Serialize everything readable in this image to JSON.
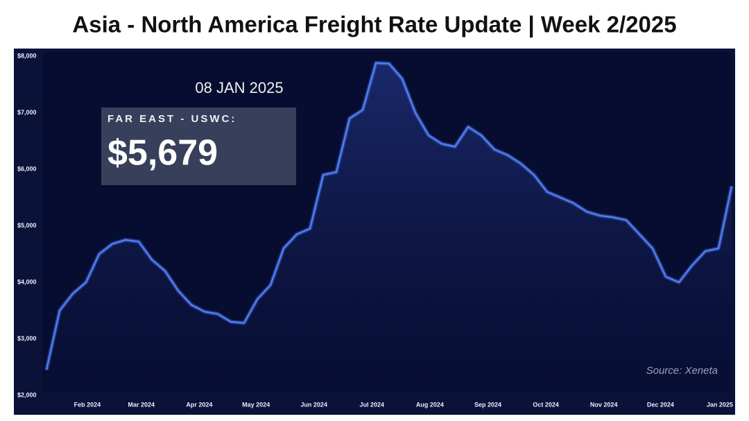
{
  "chart_data": {
    "type": "line",
    "title": "Asia - North America Freight Rate Update | Week 2/2025",
    "annotations": {
      "date": "08 JAN 2025",
      "route": "FAR EAST - USWC:",
      "rate": "$5,679",
      "source": "Source: Xeneta"
    },
    "x": [
      0,
      1,
      2,
      3,
      4,
      5,
      6,
      7,
      8,
      9,
      10,
      11,
      12,
      13,
      14,
      15,
      16,
      17,
      18,
      19,
      20,
      21,
      22,
      23,
      24,
      25,
      26,
      27,
      28,
      29,
      30,
      31,
      32,
      33,
      34,
      35,
      36,
      37,
      38,
      39,
      40,
      41,
      42,
      43,
      44,
      45,
      46,
      47,
      48,
      49,
      50,
      51,
      52
    ],
    "series": [
      {
        "name": "Far East - USWC",
        "color": "#4f7df5",
        "values": [
          2450,
          3500,
          3800,
          4000,
          4500,
          4680,
          4750,
          4720,
          4400,
          4200,
          3850,
          3600,
          3480,
          3440,
          3300,
          3280,
          3700,
          3950,
          4600,
          4850,
          4950,
          5900,
          5950,
          6900,
          7050,
          7880,
          7870,
          7600,
          7000,
          6600,
          6450,
          6400,
          6750,
          6600,
          6350,
          6250,
          6100,
          5900,
          5600,
          5500,
          5400,
          5250,
          5180,
          5150,
          5100,
          4850,
          4600,
          4100,
          4000,
          4300,
          4550,
          4600,
          5700
        ]
      }
    ],
    "xlim": [
      0,
      52
    ],
    "xticks": [
      {
        "value": 3.1,
        "label": "Feb 2024"
      },
      {
        "value": 7.2,
        "label": "Mar 2024"
      },
      {
        "value": 11.6,
        "label": "Apr 2024"
      },
      {
        "value": 15.9,
        "label": "May 2024"
      },
      {
        "value": 20.3,
        "label": "Jun 2024"
      },
      {
        "value": 24.7,
        "label": "Jul 2024"
      },
      {
        "value": 29.1,
        "label": "Aug 2024"
      },
      {
        "value": 33.5,
        "label": "Sep 2024"
      },
      {
        "value": 37.9,
        "label": "Oct 2024"
      },
      {
        "value": 42.3,
        "label": "Nov 2024"
      },
      {
        "value": 46.6,
        "label": "Dec 2024"
      },
      {
        "value": 51.1,
        "label": "Jan 2025"
      }
    ],
    "ylim": [
      2000,
      8000
    ],
    "yticks": [
      {
        "value": 2000,
        "label": "$2,000"
      },
      {
        "value": 3000,
        "label": "$3,000"
      },
      {
        "value": 4000,
        "label": "$4,000"
      },
      {
        "value": 5000,
        "label": "$5,000"
      },
      {
        "value": 6000,
        "label": "$6,000"
      },
      {
        "value": 7000,
        "label": "$7,000"
      },
      {
        "value": 8000,
        "label": "$8,000"
      }
    ],
    "grid": false
  }
}
